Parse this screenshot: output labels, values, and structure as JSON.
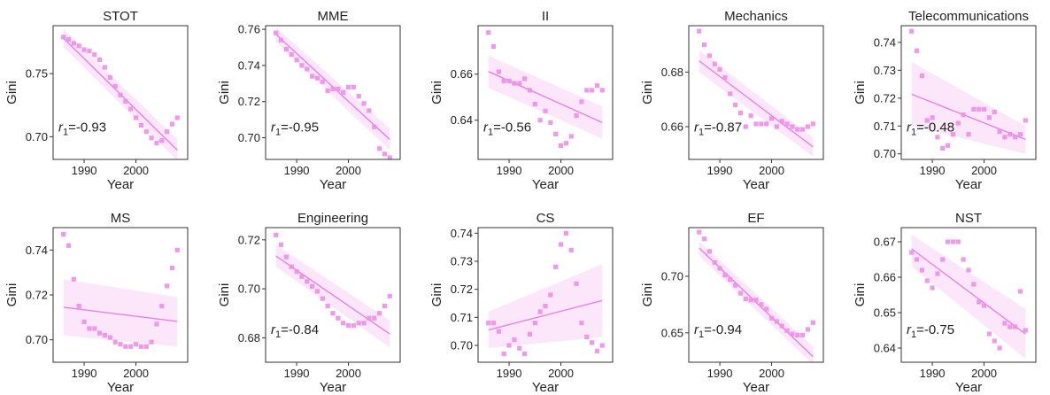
{
  "figure": {
    "xlabel": "Year",
    "ylabel": "Gini",
    "colors": {
      "points": "#ee8ee8",
      "fit_line": "#ea80e6",
      "band": "#f6b8f0",
      "frame": "#333333"
    }
  },
  "chart_data": [
    {
      "type": "scatter",
      "title": "STOT",
      "r_prefix": "r",
      "r_sub": "1",
      "r_value": "=-0.93",
      "xlim": [
        1984,
        2010
      ],
      "ylim": [
        0.682,
        0.788
      ],
      "xticks": [
        1990,
        2000
      ],
      "xtick_labels": [
        "1990",
        "2000"
      ],
      "yticks": [
        0.7,
        0.75
      ],
      "ytick_labels": [
        "0.70",
        "0.75"
      ],
      "x": [
        1986,
        1987,
        1988,
        1989,
        1990,
        1991,
        1992,
        1993,
        1994,
        1995,
        1996,
        1997,
        1998,
        1999,
        2000,
        2001,
        2002,
        2003,
        2004,
        2005,
        2006,
        2007,
        2008
      ],
      "y": [
        0.779,
        0.777,
        0.774,
        0.772,
        0.769,
        0.768,
        0.765,
        0.761,
        0.755,
        0.747,
        0.74,
        0.733,
        0.728,
        0.722,
        0.715,
        0.709,
        0.704,
        0.699,
        0.695,
        0.697,
        0.704,
        0.71,
        0.715
      ],
      "fit": [
        0.7781,
        0.6893
      ],
      "band": {
        "upper": [
          0.785,
          0.698
        ],
        "lower": [
          0.771,
          0.681
        ]
      }
    },
    {
      "type": "scatter",
      "title": "MME",
      "r_prefix": "r",
      "r_sub": "1",
      "r_value": "=-0.95",
      "xlim": [
        1984,
        2010
      ],
      "ylim": [
        0.688,
        0.762
      ],
      "xticks": [
        1990,
        2000
      ],
      "xtick_labels": [
        "1990",
        "2000"
      ],
      "yticks": [
        0.7,
        0.72,
        0.74,
        0.76
      ],
      "ytick_labels": [
        "0.70",
        "0.72",
        "0.74",
        "0.76"
      ],
      "x": [
        1986,
        1987,
        1988,
        1989,
        1990,
        1991,
        1992,
        1993,
        1994,
        1995,
        1996,
        1997,
        1998,
        1999,
        2000,
        2001,
        2002,
        2003,
        2004,
        2005,
        2006,
        2007,
        2008
      ],
      "y": [
        0.758,
        0.754,
        0.749,
        0.746,
        0.743,
        0.74,
        0.738,
        0.734,
        0.733,
        0.731,
        0.726,
        0.727,
        0.727,
        0.725,
        0.728,
        0.728,
        0.723,
        0.719,
        0.715,
        0.706,
        0.694,
        0.691,
        0.689
      ],
      "fit": [
        0.7572,
        0.699
      ],
      "band": {
        "upper": [
          0.761,
          0.705
        ],
        "lower": [
          0.753,
          0.693
        ]
      }
    },
    {
      "type": "scatter",
      "title": "II",
      "r_prefix": "r",
      "r_sub": "1",
      "r_value": "=-0.56",
      "xlim": [
        1984,
        2010
      ],
      "ylim": [
        0.623,
        0.681
      ],
      "xticks": [
        1990,
        2000
      ],
      "xtick_labels": [
        "1990",
        "2000"
      ],
      "yticks": [
        0.64,
        0.66
      ],
      "ytick_labels": [
        "0.64",
        "0.66"
      ],
      "x": [
        1986,
        1987,
        1988,
        1989,
        1990,
        1991,
        1992,
        1993,
        1994,
        1995,
        1996,
        1997,
        1998,
        1999,
        2000,
        2001,
        2002,
        2003,
        2004,
        2005,
        2006,
        2007,
        2008
      ],
      "y": [
        0.678,
        0.672,
        0.661,
        0.657,
        0.657,
        0.656,
        0.656,
        0.658,
        0.653,
        0.647,
        0.64,
        0.644,
        0.639,
        0.634,
        0.629,
        0.63,
        0.633,
        0.642,
        0.648,
        0.653,
        0.653,
        0.655,
        0.653
      ],
      "fit": [
        0.6611,
        0.639
      ],
      "band": {
        "upper": [
          0.668,
          0.646
        ],
        "lower": [
          0.654,
          0.632
        ]
      }
    },
    {
      "type": "scatter",
      "title": "Mechanics",
      "r_prefix": "r",
      "r_sub": "1",
      "r_value": "=-0.87",
      "xlim": [
        1984,
        2010
      ],
      "ylim": [
        0.648,
        0.697
      ],
      "xticks": [
        1990,
        2000
      ],
      "xtick_labels": [
        "1990",
        "2000"
      ],
      "yticks": [
        0.66,
        0.68
      ],
      "ytick_labels": [
        "0.66",
        "0.68"
      ],
      "x": [
        1986,
        1987,
        1988,
        1989,
        1990,
        1991,
        1992,
        1993,
        1994,
        1995,
        1996,
        1997,
        1998,
        1999,
        2000,
        2001,
        2002,
        2003,
        2004,
        2005,
        2006,
        2007,
        2008
      ],
      "y": [
        0.695,
        0.69,
        0.686,
        0.683,
        0.681,
        0.678,
        0.672,
        0.668,
        0.665,
        0.66,
        0.664,
        0.661,
        0.661,
        0.661,
        0.663,
        0.66,
        0.662,
        0.661,
        0.66,
        0.659,
        0.659,
        0.66,
        0.661
      ],
      "fit": [
        0.6841,
        0.6526
      ],
      "band": {
        "upper": [
          0.688,
          0.656
        ],
        "lower": [
          0.68,
          0.649
        ]
      }
    },
    {
      "type": "scatter",
      "title": "Telecommunications",
      "r_prefix": "r",
      "r_sub": "1",
      "r_value": "=-0.48",
      "xlim": [
        1984,
        2010
      ],
      "ylim": [
        0.698,
        0.746
      ],
      "xticks": [
        1990,
        2000
      ],
      "xtick_labels": [
        "1990",
        "2000"
      ],
      "yticks": [
        0.7,
        0.71,
        0.72,
        0.73,
        0.74
      ],
      "ytick_labels": [
        "0.70",
        "0.71",
        "0.72",
        "0.73",
        "0.74"
      ],
      "x": [
        1986,
        1987,
        1988,
        1989,
        1990,
        1991,
        1992,
        1993,
        1994,
        1995,
        1996,
        1997,
        1998,
        1999,
        2000,
        2001,
        2002,
        2003,
        2004,
        2005,
        2006,
        2007,
        2008
      ],
      "y": [
        0.744,
        0.737,
        0.728,
        0.712,
        0.713,
        0.706,
        0.702,
        0.703,
        0.707,
        0.711,
        0.714,
        0.707,
        0.716,
        0.716,
        0.716,
        0.713,
        0.715,
        0.708,
        0.706,
        0.707,
        0.706,
        0.707,
        0.712
      ],
      "fit": [
        0.7214,
        0.7052
      ],
      "band": {
        "upper": [
          0.733,
          0.71
        ],
        "lower": [
          0.71,
          0.7
        ]
      }
    },
    {
      "type": "scatter",
      "title": "MS",
      "r_prefix": "",
      "r_sub": "",
      "r_value": "",
      "xlim": [
        1984,
        2010
      ],
      "ylim": [
        0.69,
        0.75
      ],
      "xticks": [
        1990,
        2000
      ],
      "xtick_labels": [
        "1990",
        "2000"
      ],
      "yticks": [
        0.7,
        0.72,
        0.74
      ],
      "ytick_labels": [
        "0.70",
        "0.72",
        "0.74"
      ],
      "x": [
        1986,
        1987,
        1988,
        1989,
        1990,
        1991,
        1992,
        1993,
        1994,
        1995,
        1996,
        1997,
        1998,
        1999,
        2000,
        2001,
        2002,
        2003,
        2004,
        2005,
        2006,
        2007,
        2008
      ],
      "y": [
        0.747,
        0.742,
        0.727,
        0.715,
        0.708,
        0.705,
        0.705,
        0.703,
        0.702,
        0.701,
        0.699,
        0.698,
        0.697,
        0.697,
        0.698,
        0.697,
        0.697,
        0.699,
        0.707,
        0.715,
        0.724,
        0.732,
        0.74
      ],
      "fit": [
        0.7145,
        0.7082
      ],
      "band": {
        "upper": [
          0.727,
          0.719
        ],
        "lower": [
          0.702,
          0.697
        ]
      }
    },
    {
      "type": "scatter",
      "title": "Engineering",
      "r_prefix": "r",
      "r_sub": "1",
      "r_value": "=-0.84",
      "xlim": [
        1984,
        2010
      ],
      "ylim": [
        0.67,
        0.725
      ],
      "xticks": [
        1990,
        2000
      ],
      "xtick_labels": [
        "1990",
        "2000"
      ],
      "yticks": [
        0.68,
        0.7,
        0.72
      ],
      "ytick_labels": [
        "0.68",
        "0.70",
        "0.72"
      ],
      "x": [
        1986,
        1987,
        1988,
        1989,
        1990,
        1991,
        1992,
        1993,
        1994,
        1995,
        1996,
        1997,
        1998,
        1999,
        2000,
        2001,
        2002,
        2003,
        2004,
        2005,
        2006,
        2007,
        2008
      ],
      "y": [
        0.722,
        0.718,
        0.713,
        0.709,
        0.707,
        0.705,
        0.703,
        0.701,
        0.699,
        0.696,
        0.693,
        0.69,
        0.688,
        0.686,
        0.685,
        0.685,
        0.686,
        0.686,
        0.688,
        0.688,
        0.69,
        0.693,
        0.697
      ],
      "fit": [
        0.7134,
        0.6815
      ],
      "band": {
        "upper": [
          0.718,
          0.687
        ],
        "lower": [
          0.709,
          0.676
        ]
      }
    },
    {
      "type": "scatter",
      "title": "CS",
      "r_prefix": "",
      "r_sub": "",
      "r_value": "",
      "xlim": [
        1984,
        2010
      ],
      "ylim": [
        0.694,
        0.742
      ],
      "xticks": [
        1990,
        2000
      ],
      "xtick_labels": [
        "1990",
        "2000"
      ],
      "yticks": [
        0.7,
        0.71,
        0.72,
        0.73,
        0.74
      ],
      "ytick_labels": [
        "0.70",
        "0.71",
        "0.72",
        "0.73",
        "0.74"
      ],
      "x": [
        1986,
        1987,
        1988,
        1989,
        1990,
        1991,
        1992,
        1993,
        1994,
        1995,
        1996,
        1997,
        1998,
        1999,
        2000,
        2001,
        2002,
        2003,
        2004,
        2005,
        2006,
        2007,
        2008
      ],
      "y": [
        0.708,
        0.708,
        0.705,
        0.697,
        0.7,
        0.702,
        0.699,
        0.697,
        0.704,
        0.708,
        0.712,
        0.714,
        0.718,
        0.728,
        0.736,
        0.74,
        0.734,
        0.722,
        0.708,
        0.703,
        0.701,
        0.698,
        0.7
      ],
      "fit": [
        0.7055,
        0.716
      ],
      "band": {
        "upper": [
          0.712,
          0.729
        ],
        "lower": [
          0.699,
          0.703
        ]
      }
    },
    {
      "type": "scatter",
      "title": "EF",
      "r_prefix": "r",
      "r_sub": "1",
      "r_value": "=-0.94",
      "xlim": [
        1984,
        2010
      ],
      "ylim": [
        0.624,
        0.743
      ],
      "xticks": [
        1990,
        2000
      ],
      "xtick_labels": [
        "1990",
        "2000"
      ],
      "yticks": [
        0.65,
        0.7
      ],
      "ytick_labels": [
        "0.65",
        "0.70"
      ],
      "x": [
        1986,
        1987,
        1988,
        1989,
        1990,
        1991,
        1992,
        1993,
        1994,
        1995,
        1996,
        1997,
        1998,
        1999,
        2000,
        2001,
        2002,
        2003,
        2004,
        2005,
        2006,
        2007,
        2008
      ],
      "y": [
        0.739,
        0.733,
        0.722,
        0.712,
        0.707,
        0.701,
        0.697,
        0.692,
        0.685,
        0.68,
        0.679,
        0.679,
        0.675,
        0.671,
        0.663,
        0.66,
        0.656,
        0.652,
        0.649,
        0.648,
        0.648,
        0.653,
        0.659
      ],
      "fit": [
        0.725,
        0.629
      ],
      "band": {
        "upper": [
          0.731,
          0.638
        ],
        "lower": [
          0.718,
          0.622
        ]
      }
    },
    {
      "type": "scatter",
      "title": "NST",
      "r_prefix": "r",
      "r_sub": "1",
      "r_value": "=-0.75",
      "xlim": [
        1984,
        2010
      ],
      "ylim": [
        0.636,
        0.674
      ],
      "xticks": [
        1990,
        2000
      ],
      "xtick_labels": [
        "1990",
        "2000"
      ],
      "yticks": [
        0.64,
        0.65,
        0.66,
        0.67
      ],
      "ytick_labels": [
        "0.64",
        "0.65",
        "0.66",
        "0.67"
      ],
      "x": [
        1986,
        1987,
        1988,
        1989,
        1990,
        1991,
        1992,
        1993,
        1994,
        1995,
        1996,
        1997,
        1998,
        1999,
        2000,
        2001,
        2002,
        2003,
        2004,
        2005,
        2006,
        2007,
        2008
      ],
      "y": [
        0.667,
        0.665,
        0.662,
        0.659,
        0.657,
        0.661,
        0.665,
        0.67,
        0.67,
        0.67,
        0.665,
        0.662,
        0.658,
        0.653,
        0.652,
        0.644,
        0.642,
        0.64,
        0.647,
        0.646,
        0.646,
        0.656,
        0.645
      ],
      "fit": [
        0.668,
        0.644
      ],
      "band": {
        "upper": [
          0.672,
          0.651
        ],
        "lower": [
          0.663,
          0.637
        ]
      }
    }
  ]
}
